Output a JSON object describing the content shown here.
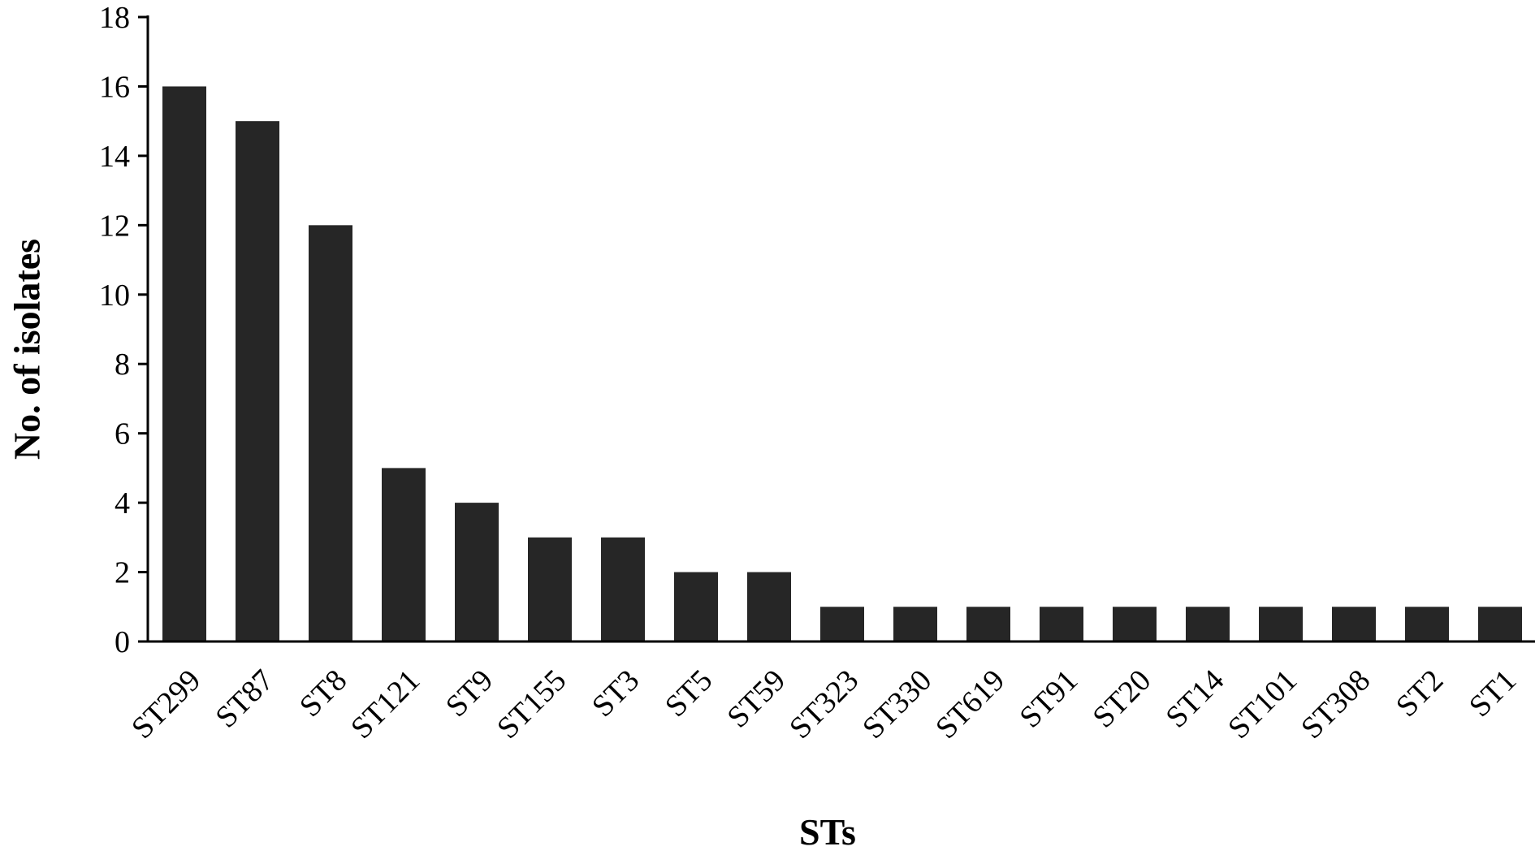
{
  "chart_data": {
    "type": "bar",
    "title": "",
    "xlabel": "STs",
    "ylabel": "No. of isolates",
    "categories": [
      "ST299",
      "ST87",
      "ST8",
      "ST121",
      "ST9",
      "ST155",
      "ST3",
      "ST5",
      "ST59",
      "ST323",
      "ST330",
      "ST619",
      "ST91",
      "ST20",
      "ST14",
      "ST101",
      "ST308",
      "ST2",
      "ST1"
    ],
    "values": [
      16,
      15,
      12,
      5,
      4,
      3,
      3,
      2,
      2,
      1,
      1,
      1,
      1,
      1,
      1,
      1,
      1,
      1,
      1
    ],
    "ylim": [
      0,
      18
    ],
    "yticks": [
      0,
      2,
      4,
      6,
      8,
      10,
      12,
      14,
      16,
      18
    ],
    "grid": false,
    "legend": "none",
    "bar_color": "#262626",
    "axis_color": "#000000"
  }
}
